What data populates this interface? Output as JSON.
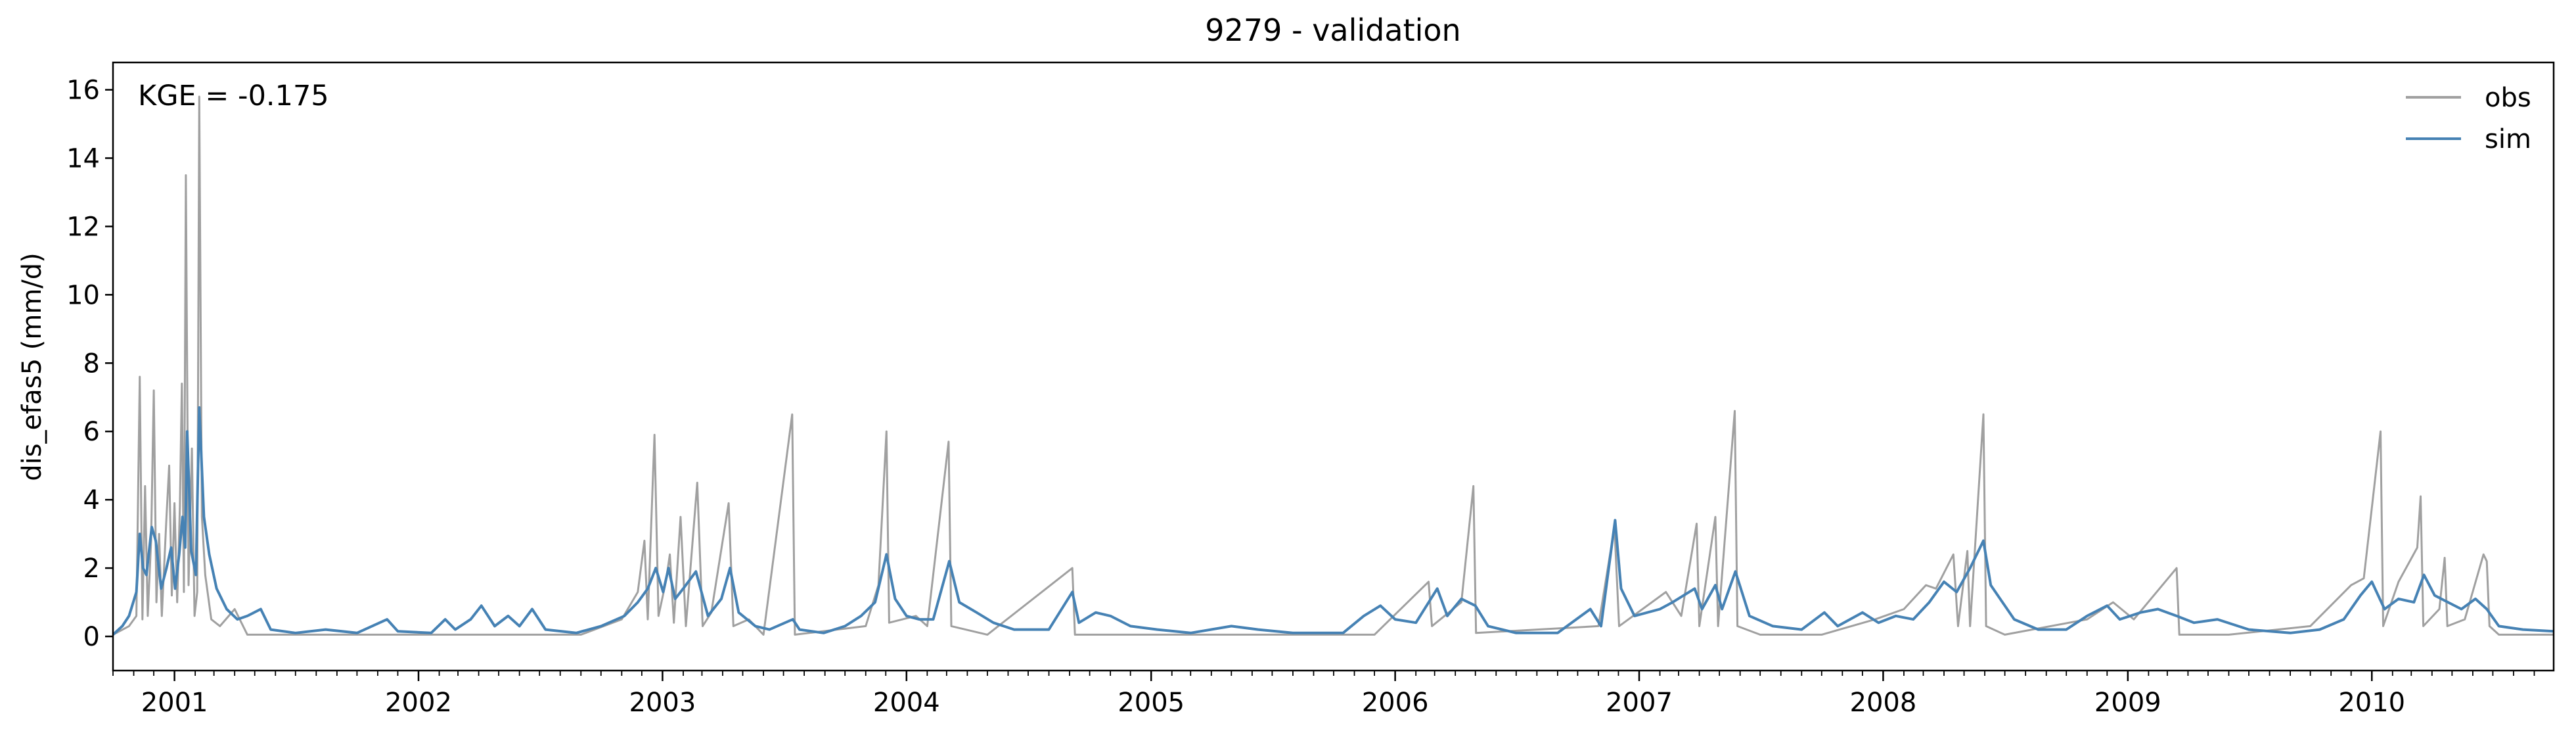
{
  "chart_data": {
    "type": "line",
    "title": "9279 - validation",
    "xlabel": "",
    "ylabel": "dis_efas5 (mm/d)",
    "annotation": "KGE = -0.175",
    "xlim": [
      "2000-10-01",
      "2010-09-30"
    ],
    "ylim": [
      -1,
      16.8
    ],
    "yticks": [
      0,
      2,
      4,
      6,
      8,
      10,
      12,
      14,
      16
    ],
    "xticks": [
      "2001",
      "2002",
      "2003",
      "2004",
      "2005",
      "2006",
      "2007",
      "2008",
      "2009",
      "2010"
    ],
    "grid": false,
    "legend_position": "top-right",
    "series": [
      {
        "name": "obs",
        "color": "#a0a0a0",
        "points": [
          [
            "2000-10-01",
            0.05
          ],
          [
            "2000-10-25",
            0.3
          ],
          [
            "2000-11-05",
            0.6
          ],
          [
            "2000-11-10",
            7.6
          ],
          [
            "2000-11-14",
            0.5
          ],
          [
            "2000-11-18",
            4.4
          ],
          [
            "2000-11-22",
            0.6
          ],
          [
            "2000-11-27",
            2.8
          ],
          [
            "2000-12-01",
            7.2
          ],
          [
            "2000-12-05",
            1.0
          ],
          [
            "2000-12-09",
            3.0
          ],
          [
            "2000-12-13",
            0.6
          ],
          [
            "2000-12-20",
            3.5
          ],
          [
            "2000-12-24",
            5.0
          ],
          [
            "2000-12-28",
            1.2
          ],
          [
            "2001-01-01",
            3.9
          ],
          [
            "2001-01-05",
            1.0
          ],
          [
            "2001-01-09",
            3.8
          ],
          [
            "2001-01-12",
            7.4
          ],
          [
            "2001-01-15",
            1.3
          ],
          [
            "2001-01-18",
            13.5
          ],
          [
            "2001-01-22",
            1.5
          ],
          [
            "2001-01-27",
            5.5
          ],
          [
            "2001-01-31",
            0.6
          ],
          [
            "2001-02-04",
            1.3
          ],
          [
            "2001-02-07",
            15.8
          ],
          [
            "2001-02-11",
            3.5
          ],
          [
            "2001-02-16",
            1.8
          ],
          [
            "2001-02-25",
            0.5
          ],
          [
            "2001-03-10",
            0.3
          ],
          [
            "2001-04-01",
            0.8
          ],
          [
            "2001-04-20",
            0.05
          ],
          [
            "2001-06-01",
            0.05
          ],
          [
            "2002-09-01",
            0.05
          ],
          [
            "2002-11-01",
            0.5
          ],
          [
            "2002-11-25",
            1.3
          ],
          [
            "2002-12-05",
            2.8
          ],
          [
            "2002-12-10",
            0.5
          ],
          [
            "2002-12-20",
            5.9
          ],
          [
            "2002-12-26",
            0.6
          ],
          [
            "2003-01-06",
            1.6
          ],
          [
            "2003-01-12",
            2.4
          ],
          [
            "2003-01-18",
            0.4
          ],
          [
            "2003-01-28",
            3.5
          ],
          [
            "2003-02-05",
            0.3
          ],
          [
            "2003-02-22",
            4.5
          ],
          [
            "2003-03-02",
            0.3
          ],
          [
            "2003-03-15",
            0.7
          ],
          [
            "2003-04-10",
            3.9
          ],
          [
            "2003-04-17",
            0.3
          ],
          [
            "2003-05-10",
            0.5
          ],
          [
            "2003-06-01",
            0.05
          ],
          [
            "2003-07-14",
            6.5
          ],
          [
            "2003-07-18",
            0.05
          ],
          [
            "2003-11-01",
            0.3
          ],
          [
            "2003-11-20",
            1.5
          ],
          [
            "2003-12-02",
            6.0
          ],
          [
            "2003-12-06",
            0.4
          ],
          [
            "2004-01-15",
            0.6
          ],
          [
            "2004-02-01",
            0.3
          ],
          [
            "2004-03-04",
            5.7
          ],
          [
            "2004-03-08",
            0.3
          ],
          [
            "2004-05-01",
            0.05
          ],
          [
            "2004-09-05",
            2.0
          ],
          [
            "2004-09-09",
            0.05
          ],
          [
            "2005-12-01",
            0.05
          ],
          [
            "2006-02-20",
            1.6
          ],
          [
            "2006-02-25",
            0.3
          ],
          [
            "2006-04-10",
            1.0
          ],
          [
            "2006-04-28",
            4.4
          ],
          [
            "2006-05-02",
            0.1
          ],
          [
            "2006-11-01",
            0.3
          ],
          [
            "2006-11-25",
            3.2
          ],
          [
            "2006-12-02",
            0.3
          ],
          [
            "2007-02-10",
            1.3
          ],
          [
            "2007-03-05",
            0.6
          ],
          [
            "2007-03-28",
            3.3
          ],
          [
            "2007-04-01",
            0.3
          ],
          [
            "2007-04-25",
            3.5
          ],
          [
            "2007-04-29",
            0.3
          ],
          [
            "2007-05-24",
            6.6
          ],
          [
            "2007-05-28",
            0.3
          ],
          [
            "2007-07-01",
            0.05
          ],
          [
            "2007-10-01",
            0.05
          ],
          [
            "2007-12-20",
            0.5
          ],
          [
            "2008-02-01",
            0.8
          ],
          [
            "2008-03-05",
            1.5
          ],
          [
            "2008-03-20",
            1.4
          ],
          [
            "2008-04-15",
            2.4
          ],
          [
            "2008-04-22",
            0.3
          ],
          [
            "2008-05-06",
            2.5
          ],
          [
            "2008-05-10",
            0.3
          ],
          [
            "2008-05-30",
            6.5
          ],
          [
            "2008-06-03",
            0.3
          ],
          [
            "2008-07-01",
            0.05
          ],
          [
            "2008-11-01",
            0.5
          ],
          [
            "2008-12-10",
            1.0
          ],
          [
            "2009-01-10",
            0.5
          ],
          [
            "2009-03-15",
            2.0
          ],
          [
            "2009-03-19",
            0.05
          ],
          [
            "2009-06-01",
            0.05
          ],
          [
            "2009-10-01",
            0.3
          ],
          [
            "2009-12-01",
            1.5
          ],
          [
            "2009-12-20",
            1.7
          ],
          [
            "2010-01-14",
            6.0
          ],
          [
            "2010-01-18",
            0.3
          ],
          [
            "2010-02-10",
            1.6
          ],
          [
            "2010-03-10",
            2.6
          ],
          [
            "2010-03-15",
            4.1
          ],
          [
            "2010-03-19",
            0.3
          ],
          [
            "2010-04-12",
            0.8
          ],
          [
            "2010-04-20",
            2.3
          ],
          [
            "2010-04-24",
            0.3
          ],
          [
            "2010-05-20",
            0.5
          ],
          [
            "2010-06-17",
            2.4
          ],
          [
            "2010-06-22",
            2.2
          ],
          [
            "2010-06-26",
            0.3
          ],
          [
            "2010-07-10",
            0.05
          ],
          [
            "2010-09-30",
            0.05
          ]
        ]
      },
      {
        "name": "sim",
        "color": "#4682b4",
        "points": [
          [
            "2000-10-01",
            0.05
          ],
          [
            "2000-10-15",
            0.3
          ],
          [
            "2000-10-25",
            0.6
          ],
          [
            "2000-11-05",
            1.3
          ],
          [
            "2000-11-10",
            3.0
          ],
          [
            "2000-11-15",
            2.0
          ],
          [
            "2000-11-20",
            1.8
          ],
          [
            "2000-11-28",
            3.2
          ],
          [
            "2000-12-04",
            2.8
          ],
          [
            "2000-12-12",
            1.4
          ],
          [
            "2000-12-20",
            2.0
          ],
          [
            "2000-12-27",
            2.6
          ],
          [
            "2001-01-02",
            1.4
          ],
          [
            "2001-01-08",
            2.4
          ],
          [
            "2001-01-13",
            3.5
          ],
          [
            "2001-01-17",
            2.6
          ],
          [
            "2001-01-20",
            6.0
          ],
          [
            "2001-01-26",
            2.5
          ],
          [
            "2001-02-02",
            1.8
          ],
          [
            "2001-02-07",
            6.7
          ],
          [
            "2001-02-14",
            3.5
          ],
          [
            "2001-02-22",
            2.4
          ],
          [
            "2001-03-05",
            1.4
          ],
          [
            "2001-03-20",
            0.8
          ],
          [
            "2001-04-05",
            0.5
          ],
          [
            "2001-04-20",
            0.6
          ],
          [
            "2001-05-10",
            0.8
          ],
          [
            "2001-05-25",
            0.2
          ],
          [
            "2001-07-01",
            0.1
          ],
          [
            "2001-08-15",
            0.2
          ],
          [
            "2001-10-01",
            0.1
          ],
          [
            "2001-11-15",
            0.5
          ],
          [
            "2001-12-01",
            0.15
          ],
          [
            "2002-01-20",
            0.1
          ],
          [
            "2002-02-10",
            0.5
          ],
          [
            "2002-02-25",
            0.2
          ],
          [
            "2002-03-20",
            0.5
          ],
          [
            "2002-04-05",
            0.9
          ],
          [
            "2002-04-25",
            0.3
          ],
          [
            "2002-05-15",
            0.6
          ],
          [
            "2002-06-01",
            0.3
          ],
          [
            "2002-06-20",
            0.8
          ],
          [
            "2002-07-10",
            0.2
          ],
          [
            "2002-08-25",
            0.1
          ],
          [
            "2002-10-01",
            0.3
          ],
          [
            "2002-11-05",
            0.6
          ],
          [
            "2002-11-25",
            1.0
          ],
          [
            "2002-12-10",
            1.4
          ],
          [
            "2002-12-22",
            2.0
          ],
          [
            "2003-01-02",
            1.3
          ],
          [
            "2003-01-10",
            2.0
          ],
          [
            "2003-01-20",
            1.1
          ],
          [
            "2003-02-01",
            1.4
          ],
          [
            "2003-02-20",
            1.9
          ],
          [
            "2003-03-10",
            0.6
          ],
          [
            "2003-03-30",
            1.1
          ],
          [
            "2003-04-12",
            2.0
          ],
          [
            "2003-04-25",
            0.7
          ],
          [
            "2003-05-20",
            0.3
          ],
          [
            "2003-06-10",
            0.2
          ],
          [
            "2003-07-15",
            0.5
          ],
          [
            "2003-07-25",
            0.2
          ],
          [
            "2003-08-30",
            0.1
          ],
          [
            "2003-10-01",
            0.3
          ],
          [
            "2003-10-25",
            0.6
          ],
          [
            "2003-11-15",
            1.0
          ],
          [
            "2003-12-02",
            2.4
          ],
          [
            "2003-12-15",
            1.1
          ],
          [
            "2004-01-01",
            0.6
          ],
          [
            "2004-01-20",
            0.5
          ],
          [
            "2004-02-10",
            0.5
          ],
          [
            "2004-03-05",
            2.2
          ],
          [
            "2004-03-20",
            1.0
          ],
          [
            "2004-04-15",
            0.7
          ],
          [
            "2004-05-10",
            0.4
          ],
          [
            "2004-06-10",
            0.2
          ],
          [
            "2004-08-01",
            0.2
          ],
          [
            "2004-09-05",
            1.3
          ],
          [
            "2004-09-15",
            0.4
          ],
          [
            "2004-10-10",
            0.7
          ],
          [
            "2004-11-01",
            0.6
          ],
          [
            "2004-12-01",
            0.3
          ],
          [
            "2005-01-10",
            0.2
          ],
          [
            "2005-03-01",
            0.1
          ],
          [
            "2005-05-01",
            0.3
          ],
          [
            "2005-06-10",
            0.2
          ],
          [
            "2005-08-01",
            0.1
          ],
          [
            "2005-10-15",
            0.1
          ],
          [
            "2005-11-15",
            0.6
          ],
          [
            "2005-12-10",
            0.9
          ],
          [
            "2006-01-01",
            0.5
          ],
          [
            "2006-02-01",
            0.4
          ],
          [
            "2006-03-05",
            1.4
          ],
          [
            "2006-03-20",
            0.6
          ],
          [
            "2006-04-10",
            1.1
          ],
          [
            "2006-05-01",
            0.9
          ],
          [
            "2006-05-20",
            0.3
          ],
          [
            "2006-07-01",
            0.1
          ],
          [
            "2006-09-01",
            0.1
          ],
          [
            "2006-10-20",
            0.8
          ],
          [
            "2006-11-05",
            0.3
          ],
          [
            "2006-11-26",
            3.4
          ],
          [
            "2006-12-05",
            1.4
          ],
          [
            "2006-12-25",
            0.6
          ],
          [
            "2007-02-01",
            0.8
          ],
          [
            "2007-02-20",
            1.0
          ],
          [
            "2007-03-25",
            1.4
          ],
          [
            "2007-04-05",
            0.8
          ],
          [
            "2007-04-25",
            1.5
          ],
          [
            "2007-05-05",
            0.8
          ],
          [
            "2007-05-25",
            1.9
          ],
          [
            "2007-06-15",
            0.6
          ],
          [
            "2007-07-20",
            0.3
          ],
          [
            "2007-09-01",
            0.2
          ],
          [
            "2007-10-05",
            0.7
          ],
          [
            "2007-10-25",
            0.3
          ],
          [
            "2007-12-01",
            0.7
          ],
          [
            "2007-12-25",
            0.4
          ],
          [
            "2008-01-20",
            0.6
          ],
          [
            "2008-02-15",
            0.5
          ],
          [
            "2008-03-10",
            1.0
          ],
          [
            "2008-04-01",
            1.6
          ],
          [
            "2008-04-20",
            1.3
          ],
          [
            "2008-05-10",
            2.0
          ],
          [
            "2008-05-30",
            2.8
          ],
          [
            "2008-06-10",
            1.5
          ],
          [
            "2008-07-15",
            0.5
          ],
          [
            "2008-08-20",
            0.2
          ],
          [
            "2008-10-01",
            0.2
          ],
          [
            "2008-11-01",
            0.6
          ],
          [
            "2008-12-01",
            0.9
          ],
          [
            "2008-12-20",
            0.5
          ],
          [
            "2009-01-20",
            0.7
          ],
          [
            "2009-02-15",
            0.8
          ],
          [
            "2009-03-15",
            0.6
          ],
          [
            "2009-04-10",
            0.4
          ],
          [
            "2009-05-15",
            0.5
          ],
          [
            "2009-07-01",
            0.2
          ],
          [
            "2009-09-01",
            0.1
          ],
          [
            "2009-10-15",
            0.2
          ],
          [
            "2009-11-20",
            0.5
          ],
          [
            "2009-12-15",
            1.2
          ],
          [
            "2010-01-01",
            1.6
          ],
          [
            "2010-01-20",
            0.8
          ],
          [
            "2010-02-10",
            1.1
          ],
          [
            "2010-03-05",
            1.0
          ],
          [
            "2010-03-20",
            1.8
          ],
          [
            "2010-04-05",
            1.2
          ],
          [
            "2010-04-25",
            1.0
          ],
          [
            "2010-05-15",
            0.8
          ],
          [
            "2010-06-05",
            1.1
          ],
          [
            "2010-06-22",
            0.8
          ],
          [
            "2010-07-10",
            0.3
          ],
          [
            "2010-08-15",
            0.2
          ],
          [
            "2010-09-30",
            0.15
          ]
        ]
      }
    ]
  }
}
